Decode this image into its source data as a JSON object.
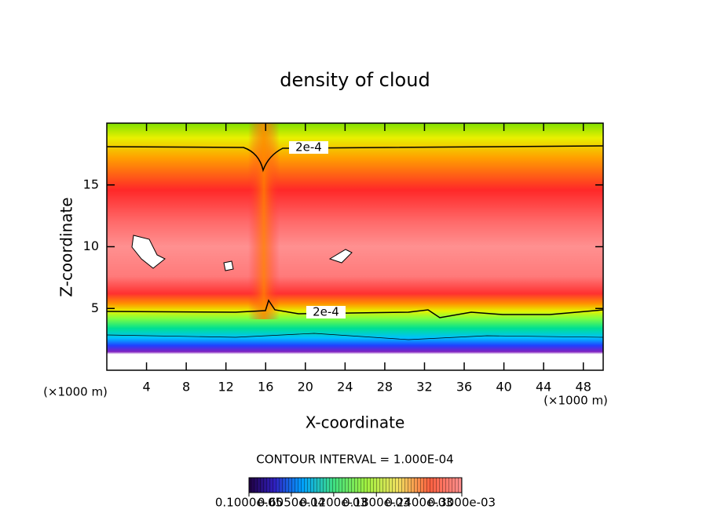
{
  "chart_data": {
    "type": "contour",
    "title": "density of cloud",
    "x_label": "X-coordinate",
    "y_label": "Z-coordinate",
    "x_unit": "(×1000 m)",
    "y_unit": "(×1000 m)",
    "xlim": [
      0,
      50
    ],
    "ylim": [
      0,
      20
    ],
    "xticks": [
      4,
      8,
      12,
      16,
      20,
      24,
      28,
      32,
      36,
      40,
      44,
      48
    ],
    "yticks": [
      5,
      10,
      15
    ],
    "contour_interval": "CONTOUR INTERVAL = 1.000E-04",
    "contour_labels": [
      "2e-4",
      "2e-4"
    ],
    "colorbar": {
      "lim": [
        1e-06,
        0.0003
      ],
      "ticks": [
        {
          "value": 1e-06,
          "label": "0.1000e-05"
        },
        {
          "value": 6.05e-05,
          "label": "0.6050e-04"
        },
        {
          "value": 0.00012,
          "label": "0.1200e-03"
        },
        {
          "value": 0.00018,
          "label": "0.1800e-03"
        },
        {
          "value": 0.00024,
          "label": "0.2400e-03"
        },
        {
          "value": 0.0003,
          "label": "0.3000e-03"
        }
      ]
    }
  }
}
